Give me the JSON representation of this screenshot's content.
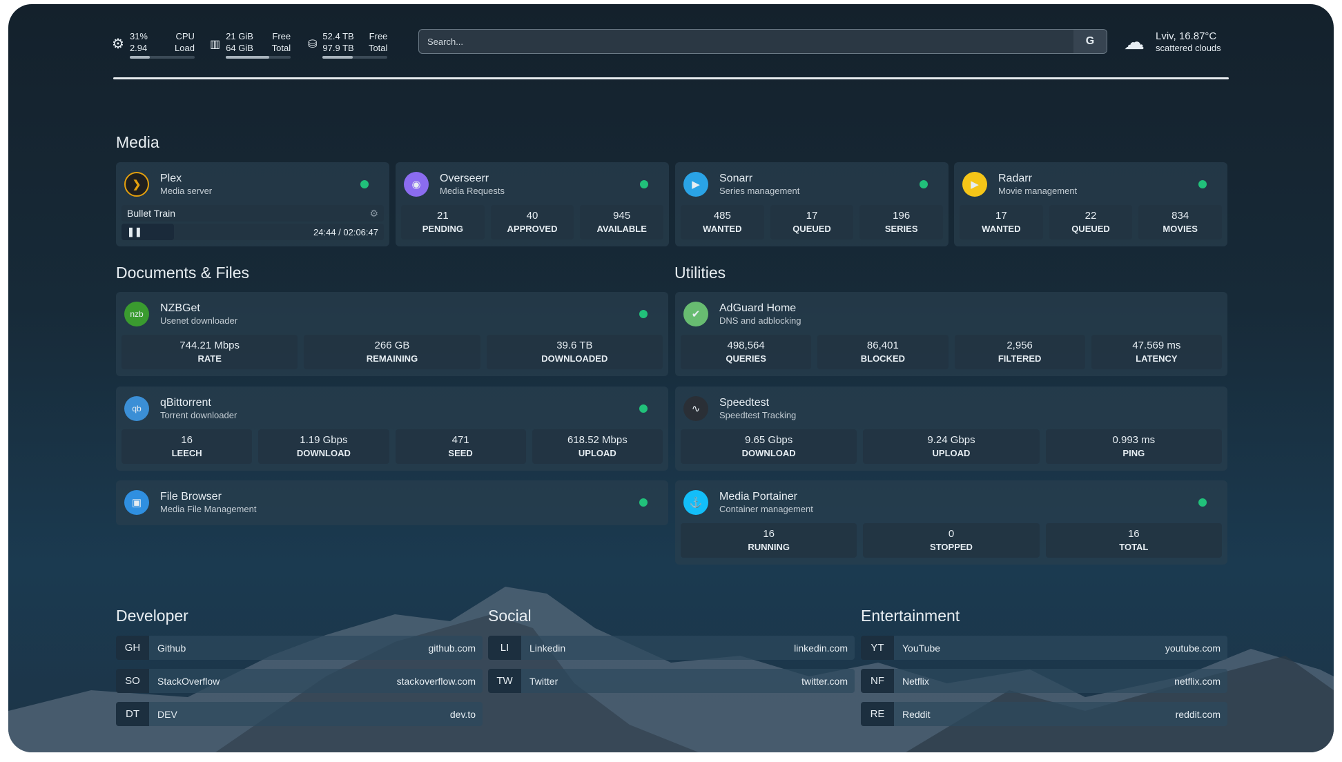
{
  "topbar": {
    "cpu": {
      "value1": "31%",
      "value2": "2.94",
      "label1": "CPU",
      "label2": "Load",
      "percent": 31,
      "icon": "cpu-icon"
    },
    "memory": {
      "value1": "21 GiB",
      "value2": "64 GiB",
      "label1": "Free",
      "label2": "Total",
      "percent": 67,
      "icon": "memory-icon"
    },
    "disk": {
      "value1": "52.4 TB",
      "value2": "97.9 TB",
      "label1": "Free",
      "label2": "Total",
      "percent": 46,
      "icon": "disk-icon"
    },
    "search": {
      "placeholder": "Search...",
      "provider_label": "G"
    },
    "weather": {
      "location_temp": "Lviv, 16.87°C",
      "condition": "scattered clouds",
      "icon": "cloud-icon"
    }
  },
  "sections": {
    "media": "Media",
    "documents": "Documents & Files",
    "utilities": "Utilities",
    "developer": "Developer",
    "social": "Social",
    "entertainment": "Entertainment"
  },
  "plex": {
    "name": "Plex",
    "desc": "Media server",
    "now_playing": "Bullet Train",
    "time": "24:44 / 02:06:47",
    "progress_percent": 20,
    "status": "online"
  },
  "services": [
    {
      "id": "overseerr",
      "name": "Overseerr",
      "desc": "Media Requests",
      "icon_color": "#8b6cf0",
      "glyph": "◉",
      "stats": [
        [
          "21",
          "PENDING"
        ],
        [
          "40",
          "APPROVED"
        ],
        [
          "945",
          "AVAILABLE"
        ]
      ],
      "status": "online"
    },
    {
      "id": "sonarr",
      "name": "Sonarr",
      "desc": "Series management",
      "icon_color": "#2aa3e6",
      "glyph": "▶",
      "stats": [
        [
          "485",
          "WANTED"
        ],
        [
          "17",
          "QUEUED"
        ],
        [
          "196",
          "SERIES"
        ]
      ],
      "status": "online"
    },
    {
      "id": "radarr",
      "name": "Radarr",
      "desc": "Movie management",
      "icon_color": "#f5c518",
      "glyph": "▶",
      "stats": [
        [
          "17",
          "WANTED"
        ],
        [
          "22",
          "QUEUED"
        ],
        [
          "834",
          "MOVIES"
        ]
      ],
      "status": "online"
    },
    {
      "id": "nzbget",
      "name": "NZBGet",
      "desc": "Usenet downloader",
      "icon_color": "#3a9b2f",
      "glyph": "nzb",
      "stats": [
        [
          "744.21 Mbps",
          "RATE"
        ],
        [
          "266 GB",
          "REMAINING"
        ],
        [
          "39.6 TB",
          "DOWNLOADED"
        ]
      ],
      "status": "online"
    },
    {
      "id": "adguard",
      "name": "AdGuard Home",
      "desc": "DNS and adblocking",
      "icon_color": "#68bc71",
      "glyph": "✔",
      "stats": [
        [
          "498,564",
          "QUERIES"
        ],
        [
          "86,401",
          "BLOCKED"
        ],
        [
          "2,956",
          "FILTERED"
        ],
        [
          "47.569 ms",
          "LATENCY"
        ]
      ]
    },
    {
      "id": "qbittorrent",
      "name": "qBittorrent",
      "desc": "Torrent downloader",
      "icon_color": "#3b8fd6",
      "glyph": "qb",
      "stats": [
        [
          "16",
          "LEECH"
        ],
        [
          "1.19 Gbps",
          "DOWNLOAD"
        ],
        [
          "471",
          "SEED"
        ],
        [
          "618.52 Mbps",
          "UPLOAD"
        ]
      ],
      "status": "online"
    },
    {
      "id": "speedtest",
      "name": "Speedtest",
      "desc": "Speedtest Tracking",
      "icon_color": "#2a2f36",
      "glyph": "∿",
      "stats": [
        [
          "9.65 Gbps",
          "DOWNLOAD"
        ],
        [
          "9.24 Gbps",
          "UPLOAD"
        ],
        [
          "0.993 ms",
          "PING"
        ]
      ]
    },
    {
      "id": "filebrowser",
      "name": "File Browser",
      "desc": "Media File Management",
      "icon_color": "#2f8fe0",
      "glyph": "▣",
      "stats": [],
      "status": "online"
    },
    {
      "id": "portainer",
      "name": "Media Portainer",
      "desc": "Container management",
      "icon_color": "#13bef9",
      "glyph": "⚓",
      "stats": [
        [
          "16",
          "RUNNING"
        ],
        [
          "0",
          "STOPPED"
        ],
        [
          "16",
          "TOTAL"
        ]
      ],
      "status": "online"
    }
  ],
  "bookmarks": {
    "developer": [
      [
        "GH",
        "Github",
        "github.com"
      ],
      [
        "SO",
        "StackOverflow",
        "stackoverflow.com"
      ],
      [
        "DT",
        "DEV",
        "dev.to"
      ]
    ],
    "social": [
      [
        "LI",
        "Linkedin",
        "linkedin.com"
      ],
      [
        "TW",
        "Twitter",
        "twitter.com"
      ]
    ],
    "entertainment": [
      [
        "YT",
        "YouTube",
        "youtube.com"
      ],
      [
        "NF",
        "Netflix",
        "netflix.com"
      ],
      [
        "RE",
        "Reddit",
        "reddit.com"
      ]
    ]
  },
  "colors": {
    "status_online": "#21c17a",
    "plex_accent": "#e5a00d"
  }
}
